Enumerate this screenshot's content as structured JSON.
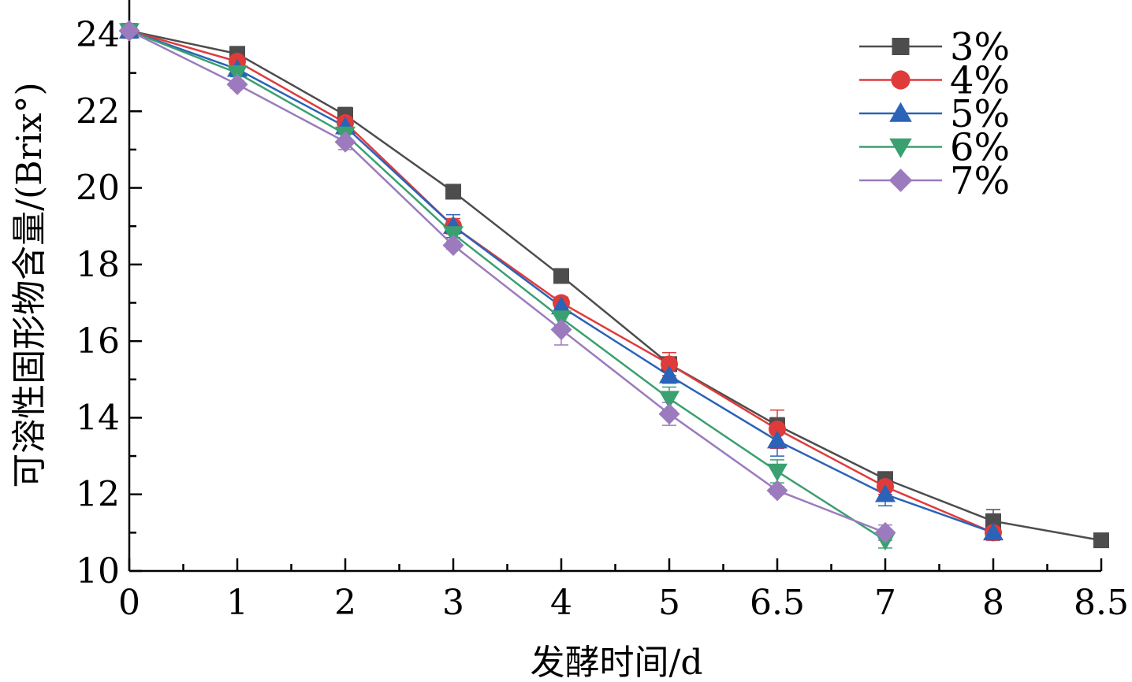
{
  "chart_data": {
    "type": "line",
    "xlabel": "发酵时间/d",
    "ylabel": "可溶性固形物含量/(Brix°)",
    "categories": [
      "0",
      "1",
      "2",
      "3",
      "4",
      "5",
      "6.5",
      "7",
      "8",
      "8.5"
    ],
    "ylim": [
      10,
      25
    ],
    "yticks": [
      10,
      12,
      14,
      16,
      18,
      20,
      22,
      24
    ],
    "grid": false,
    "legend_position": "top-right",
    "series": [
      {
        "name": "3%",
        "color": "#4d4d4d",
        "marker": "square",
        "values": [
          24.1,
          23.5,
          21.9,
          19.9,
          17.7,
          15.4,
          13.8,
          12.4,
          11.3,
          10.8
        ],
        "errors": [
          0.1,
          0.1,
          0.2,
          0.1,
          0.1,
          0.1,
          0.2,
          0.15,
          0.3,
          0.1
        ]
      },
      {
        "name": "4%",
        "color": "#e03b3b",
        "marker": "circle",
        "values": [
          24.1,
          23.3,
          21.7,
          19.0,
          17.0,
          15.4,
          13.7,
          12.2,
          11.0,
          null
        ],
        "errors": [
          0.1,
          0.15,
          0.2,
          0.2,
          0.15,
          0.3,
          0.5,
          0.2,
          0.2,
          null
        ]
      },
      {
        "name": "5%",
        "color": "#2a63b8",
        "marker": "triangle-up",
        "values": [
          24.1,
          23.1,
          21.6,
          19.0,
          16.9,
          15.1,
          13.4,
          12.0,
          11.0,
          null
        ],
        "errors": [
          0.1,
          0.15,
          0.2,
          0.3,
          0.2,
          0.2,
          0.4,
          0.3,
          0.15,
          null
        ]
      },
      {
        "name": "6%",
        "color": "#3aa070",
        "marker": "triangle-down",
        "values": [
          24.1,
          23.0,
          21.4,
          18.8,
          16.6,
          14.5,
          12.6,
          10.8,
          null,
          null
        ],
        "errors": [
          0.1,
          0.1,
          0.2,
          0.2,
          0.2,
          0.3,
          0.3,
          0.2,
          null,
          null
        ]
      },
      {
        "name": "7%",
        "color": "#9b7bbd",
        "marker": "diamond",
        "values": [
          24.1,
          22.7,
          21.2,
          18.5,
          16.3,
          14.1,
          12.1,
          11.0,
          null,
          null
        ],
        "errors": [
          0.1,
          0.1,
          0.2,
          0.1,
          0.4,
          0.3,
          0.1,
          0.2,
          null,
          null
        ]
      }
    ]
  }
}
